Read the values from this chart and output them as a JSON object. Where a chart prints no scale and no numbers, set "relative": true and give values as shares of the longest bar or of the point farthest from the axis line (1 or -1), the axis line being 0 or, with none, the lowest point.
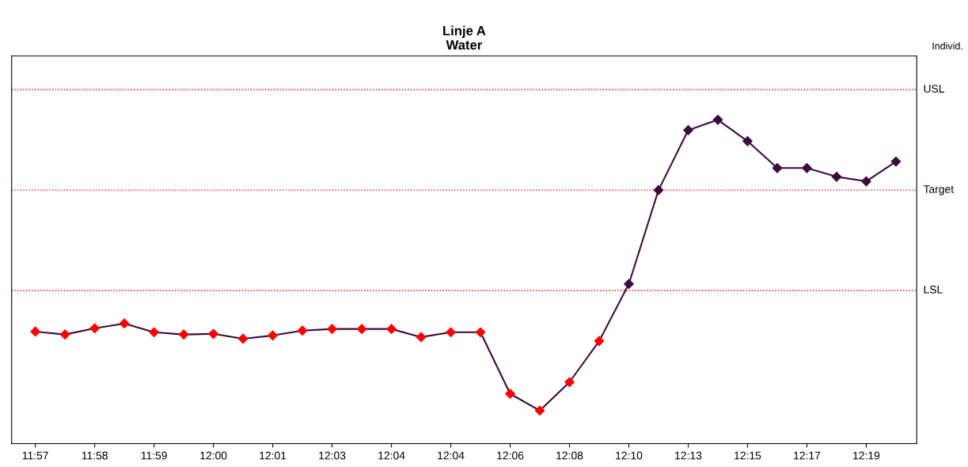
{
  "chart_data": {
    "type": "line",
    "title": "Linje A\nWater",
    "relative": true,
    "tick_labels": "x",
    "grid": false,
    "legend": false,
    "marker": "diamond",
    "line_style": "solid",
    "categories": [
      "11:57",
      null,
      "11:58",
      null,
      "11:59",
      null,
      "12:00",
      null,
      "12:01",
      null,
      "12:03",
      null,
      "12:04",
      null,
      "12:04",
      null,
      "12:06",
      null,
      "12:08",
      null,
      "12:10",
      null,
      "12:13",
      null,
      "12:15",
      null,
      "12:17",
      null,
      "12:19",
      null
    ],
    "series": [
      {
        "color": "#3d0a3d",
        "colors": [
          "#ff0000",
          "#ff0000",
          "#ff0000",
          "#ff0000",
          "#ff0000",
          "#ff0000",
          "#ff0000",
          "#ff0000",
          "#ff0000",
          "#ff0000",
          "#ff0000",
          "#ff0000",
          "#ff0000",
          "#ff0000",
          "#ff0000",
          "#ff0000",
          "#ff0000",
          "#ff0000",
          "#ff0000",
          "#ff0000",
          "#3d0a3d",
          "#3d0a3d",
          "#3d0a3d",
          "#3d0a3d",
          "#3d0a3d",
          "#3d0a3d",
          "#3d0a3d",
          "#3d0a3d",
          "#3d0a3d",
          "#3d0a3d"
        ],
        "values": [
          0.346,
          0.337,
          0.356,
          0.371,
          0.344,
          0.337,
          0.339,
          0.324,
          0.334,
          0.349,
          0.354,
          0.354,
          0.354,
          0.329,
          0.344,
          0.344,
          0.154,
          0.102,
          0.19,
          0.317,
          0.493,
          0.783,
          0.968,
          1,
          0.934,
          0.851,
          0.851,
          0.824,
          0.81,
          0.871
        ]
      }
    ],
    "ref_lines": [
      {
        "axis": "y",
        "value": 1.093,
        "label": "USL",
        "color": "#ff0000",
        "line_style": "dotted"
      },
      {
        "axis": "y",
        "value": 0.783,
        "label": "Target",
        "color": "#ff0000",
        "line_style": "dotted"
      },
      {
        "axis": "y",
        "value": 0.473,
        "label": "LSL",
        "color": "#ff0000",
        "line_style": "dotted"
      }
    ],
    "annotations": [
      "Individ."
    ]
  }
}
